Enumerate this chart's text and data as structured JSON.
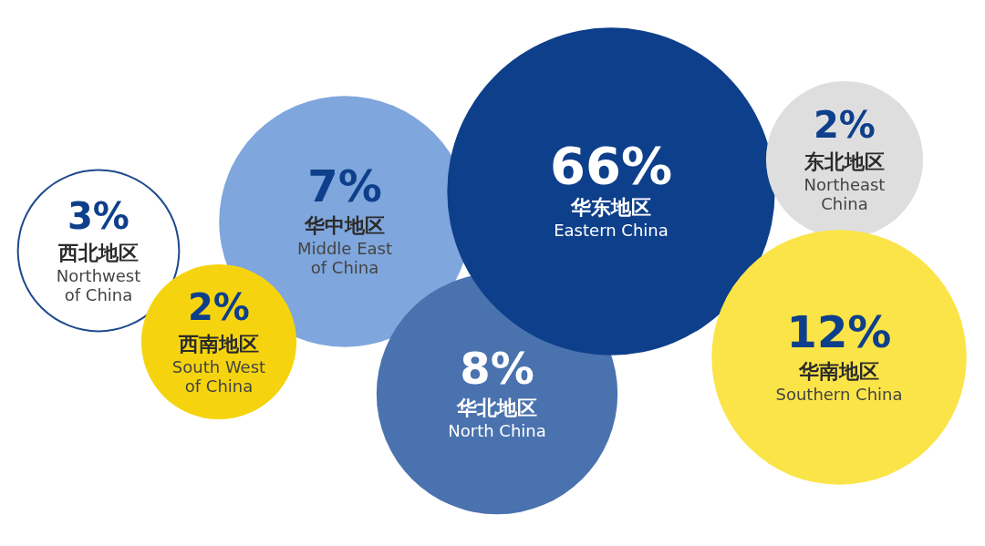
{
  "chart_data": {
    "type": "other",
    "categories": [
      "西北地区\nNorthwest\nof China",
      "西南地区\nSouth West\nof China",
      "华中地区\nMiddle East\nof China",
      "华北地区\nNorth China",
      "华东地区\nEastern China",
      "东北地区\nNortheast\nChina",
      "华南地区\nSouthern China"
    ],
    "values": [
      3,
      2,
      7,
      8,
      66,
      2,
      12
    ],
    "value_labels": [
      "3%",
      "2%",
      "7%",
      "8%",
      "66%",
      "2%",
      "12%"
    ],
    "colors": [
      "#ffffff",
      "#f5d40f",
      "#7fa6dd",
      "#4a72ae",
      "#0e3f8b",
      "#dedede",
      "#fbe448"
    ]
  }
}
